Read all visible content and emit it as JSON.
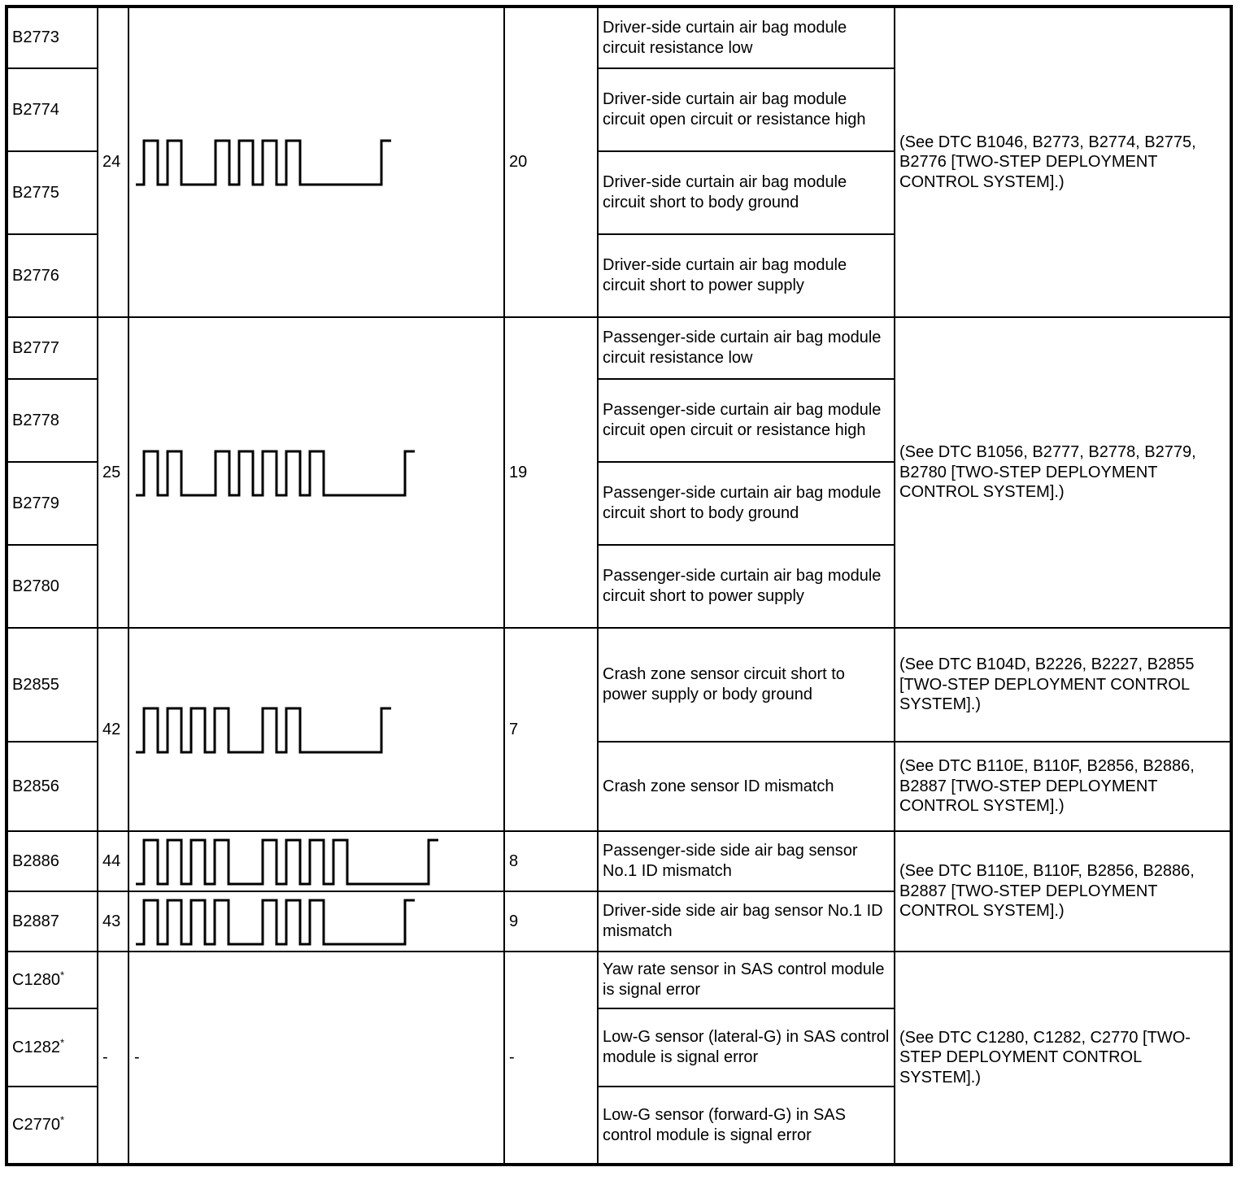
{
  "colors": {
    "background": "#ffffff",
    "border": "#000000",
    "text": "#000000",
    "waveform_line": "#000000"
  },
  "groups": [
    {
      "num_left": "24",
      "pattern": [
        2,
        4
      ],
      "num_right": "20",
      "reference": "(See DTC B1046, B2773, B2774, B2775, B2776 [TWO-STEP DEPLOYMENT CONTROL SYSTEM].)",
      "rows": [
        {
          "code": "B2773",
          "desc": "Driver-side curtain air bag module circuit resistance low"
        },
        {
          "code": "B2774",
          "desc": "Driver-side curtain air bag module circuit open circuit or resistance high"
        },
        {
          "code": "B2775",
          "desc": "Driver-side curtain air bag module circuit short to body ground"
        },
        {
          "code": "B2776",
          "desc": "Driver-side curtain air bag module circuit short to power supply"
        }
      ]
    },
    {
      "num_left": "25",
      "pattern": [
        2,
        5
      ],
      "num_right": "19",
      "reference": "(See DTC B1056, B2777, B2778, B2779, B2780 [TWO-STEP DEPLOYMENT CONTROL SYSTEM].)",
      "rows": [
        {
          "code": "B2777",
          "desc": "Passenger-side curtain air bag module circuit resistance low"
        },
        {
          "code": "B2778",
          "desc": "Passenger-side curtain air bag module circuit open circuit or resistance high"
        },
        {
          "code": "B2779",
          "desc": "Passenger-side curtain air bag module circuit short to body ground"
        },
        {
          "code": "B2780",
          "desc": "Passenger-side curtain air bag module circuit short to power supply"
        }
      ]
    },
    {
      "num_left": "42",
      "pattern": [
        4,
        2
      ],
      "num_right": "7",
      "rows": [
        {
          "code": "B2855",
          "desc": "Crash zone sensor circuit short to power supply or body ground",
          "reference": "(See DTC B104D, B2226, B2227, B2855 [TWO-STEP DEPLOYMENT CONTROL SYSTEM].)"
        },
        {
          "code": "B2856",
          "desc": "Crash zone sensor ID mismatch",
          "reference": "(See DTC B110E, B110F, B2856, B2886, B2887 [TWO-STEP DEPLOYMENT CONTROL SYSTEM].)"
        }
      ]
    },
    {
      "reference": "(See DTC B110E, B110F, B2856, B2886, B2887 [TWO-STEP DEPLOYMENT CONTROL SYSTEM].)",
      "rows": [
        {
          "code": "B2886",
          "num_left": "44",
          "pattern": [
            4,
            4
          ],
          "num_right": "8",
          "desc": "Passenger-side side air bag sensor No.1 ID mismatch"
        },
        {
          "code": "B2887",
          "num_left": "43",
          "pattern": [
            4,
            3
          ],
          "num_right": "9",
          "desc": "Driver-side side air bag sensor No.1 ID mismatch"
        }
      ]
    },
    {
      "num_left": "-",
      "pattern_dash": "-",
      "num_right": "-",
      "reference": "(See DTC C1280, C1282, C2770 [TWO-STEP DEPLOYMENT CONTROL SYSTEM].)",
      "rows": [
        {
          "code": "C1280",
          "sup": "*",
          "desc": "Yaw rate sensor in SAS control module is signal error"
        },
        {
          "code": "C1282",
          "sup": "*",
          "desc": "Low-G sensor (lateral-G) in SAS control module is signal error"
        },
        {
          "code": "C2770",
          "sup": "*",
          "desc": "Low-G sensor (forward-G) in SAS control module is signal error"
        }
      ]
    }
  ]
}
